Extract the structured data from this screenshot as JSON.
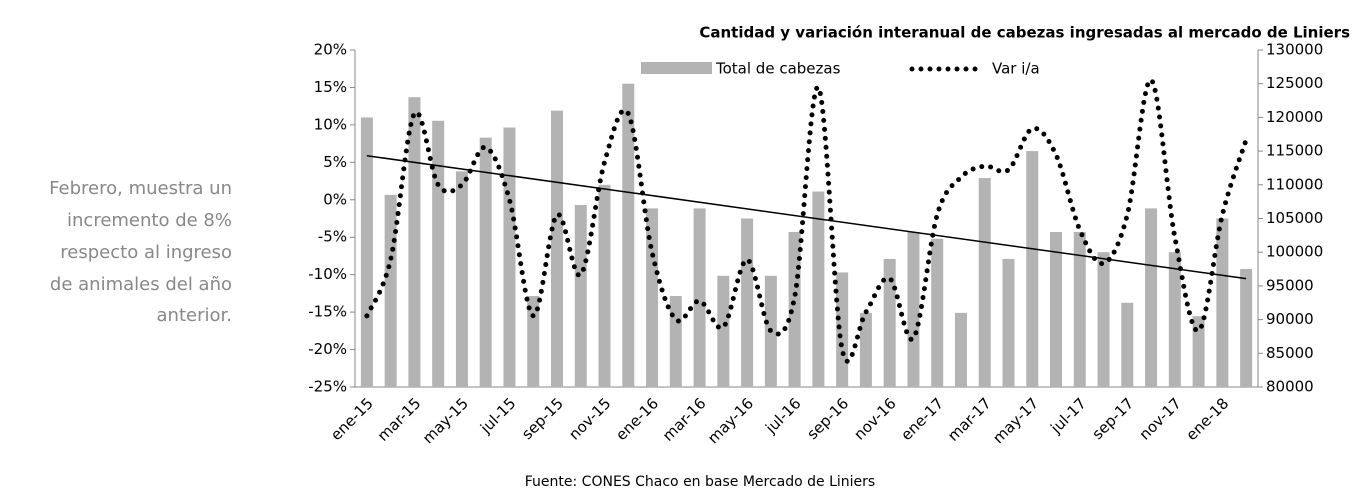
{
  "note_text": [
    "Febrero, muestra un",
    "incremento de 8%",
    "respecto al ingreso",
    "de animales del año",
    "anterior."
  ],
  "chart_data": {
    "type": "bar-line",
    "title": "Cantidad y variación interanual de cabezas ingresadas al mercado de Liniers",
    "source": "Fuente: CONES Chaco en base Mercado de Liniers",
    "categories": [
      "ene-15",
      null,
      "mar-15",
      null,
      "may-15",
      null,
      "jul-15",
      null,
      "sep-15",
      null,
      "nov-15",
      null,
      "ene-16",
      null,
      "mar-16",
      null,
      "may-16",
      null,
      "jul-16",
      null,
      "sep-16",
      null,
      "nov-16",
      null,
      "ene-17",
      null,
      "mar-17",
      null,
      "may-17",
      null,
      "jul-17",
      null,
      "sep-17",
      null,
      "nov-17",
      null,
      "ene-18",
      null
    ],
    "series": [
      {
        "name": "Total de cabezas",
        "color": "#b3b3b3",
        "axis": "y2",
        "values": [
          120000,
          108500,
          123000,
          119500,
          112000,
          117000,
          118500,
          93500,
          121000,
          107000,
          110000,
          125000,
          106500,
          93500,
          106500,
          96500,
          105000,
          96500,
          103000,
          109000,
          97000,
          91000,
          99000,
          103000,
          102000,
          91000,
          111000,
          99000,
          115000,
          103000,
          103000,
          100000,
          92500,
          106500,
          100000,
          90500,
          105000,
          97500
        ]
      },
      {
        "name": "Var i/a",
        "color": "#000000",
        "axis": "y",
        "values": [
          -15.5,
          -8,
          11.5,
          2,
          2,
          7,
          0,
          -15.5,
          -2,
          -10,
          5,
          11.5,
          -7,
          -16,
          -13.5,
          -17,
          -8,
          -17.5,
          -13,
          15,
          -20,
          -15,
          -10.5,
          -18.5,
          -2,
          3,
          4.5,
          4,
          9.5,
          6,
          -4,
          -8.5,
          -2,
          16,
          -5,
          -17.5,
          -2,
          8
        ]
      }
    ],
    "trendline": true,
    "ylim": [
      -25,
      20
    ],
    "yticks": [
      {
        "value": -25,
        "label": "-25%"
      },
      {
        "value": -20,
        "label": "-20%"
      },
      {
        "value": -15,
        "label": "-15%"
      },
      {
        "value": -10,
        "label": "-10%"
      },
      {
        "value": -5,
        "label": "-5%"
      },
      {
        "value": 0,
        "label": "0%"
      },
      {
        "value": 5,
        "label": "5%"
      },
      {
        "value": 10,
        "label": "10%"
      },
      {
        "value": 15,
        "label": "15%"
      },
      {
        "value": 20,
        "label": "20%"
      }
    ],
    "y2lim": [
      80000,
      130000
    ],
    "y2ticks": [
      80000,
      85000,
      90000,
      95000,
      100000,
      105000,
      110000,
      115000,
      120000,
      125000,
      130000
    ]
  }
}
